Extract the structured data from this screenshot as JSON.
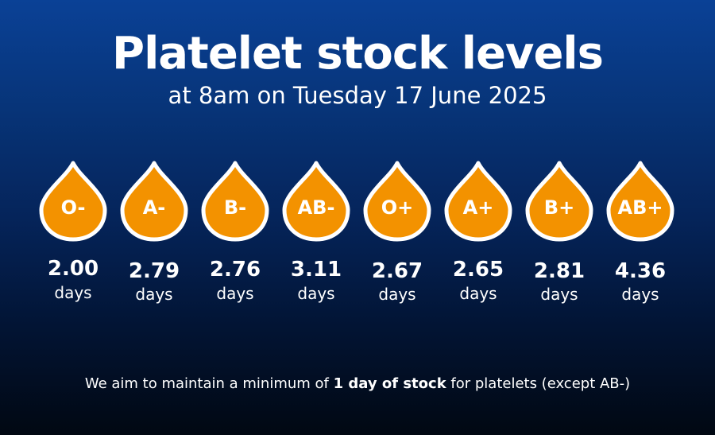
{
  "title": "Platelet stock levels",
  "subtitle": "at 8am on Tuesday 17 June 2025",
  "colors": {
    "drop_fill": "#F39200",
    "drop_outline": "#FFFFFF",
    "background_top": "#0A4196",
    "background_bottom": "#010812"
  },
  "unit_label": "days",
  "stocks": [
    {
      "group": "O-",
      "value": "2.00",
      "days": 2.0
    },
    {
      "group": "A-",
      "value": "2.79",
      "days": 2.79
    },
    {
      "group": "B-",
      "value": "2.76",
      "days": 2.76
    },
    {
      "group": "AB-",
      "value": "3.11",
      "days": 3.11
    },
    {
      "group": "O+",
      "value": "2.67",
      "days": 2.67
    },
    {
      "group": "A+",
      "value": "2.65",
      "days": 2.65
    },
    {
      "group": "B+",
      "value": "2.81",
      "days": 2.81
    },
    {
      "group": "AB+",
      "value": "4.36",
      "days": 4.36
    }
  ],
  "footer": {
    "before": "We aim to maintain a minimum of ",
    "bold": "1 day of stock",
    "after": " for platelets (except AB-)"
  }
}
